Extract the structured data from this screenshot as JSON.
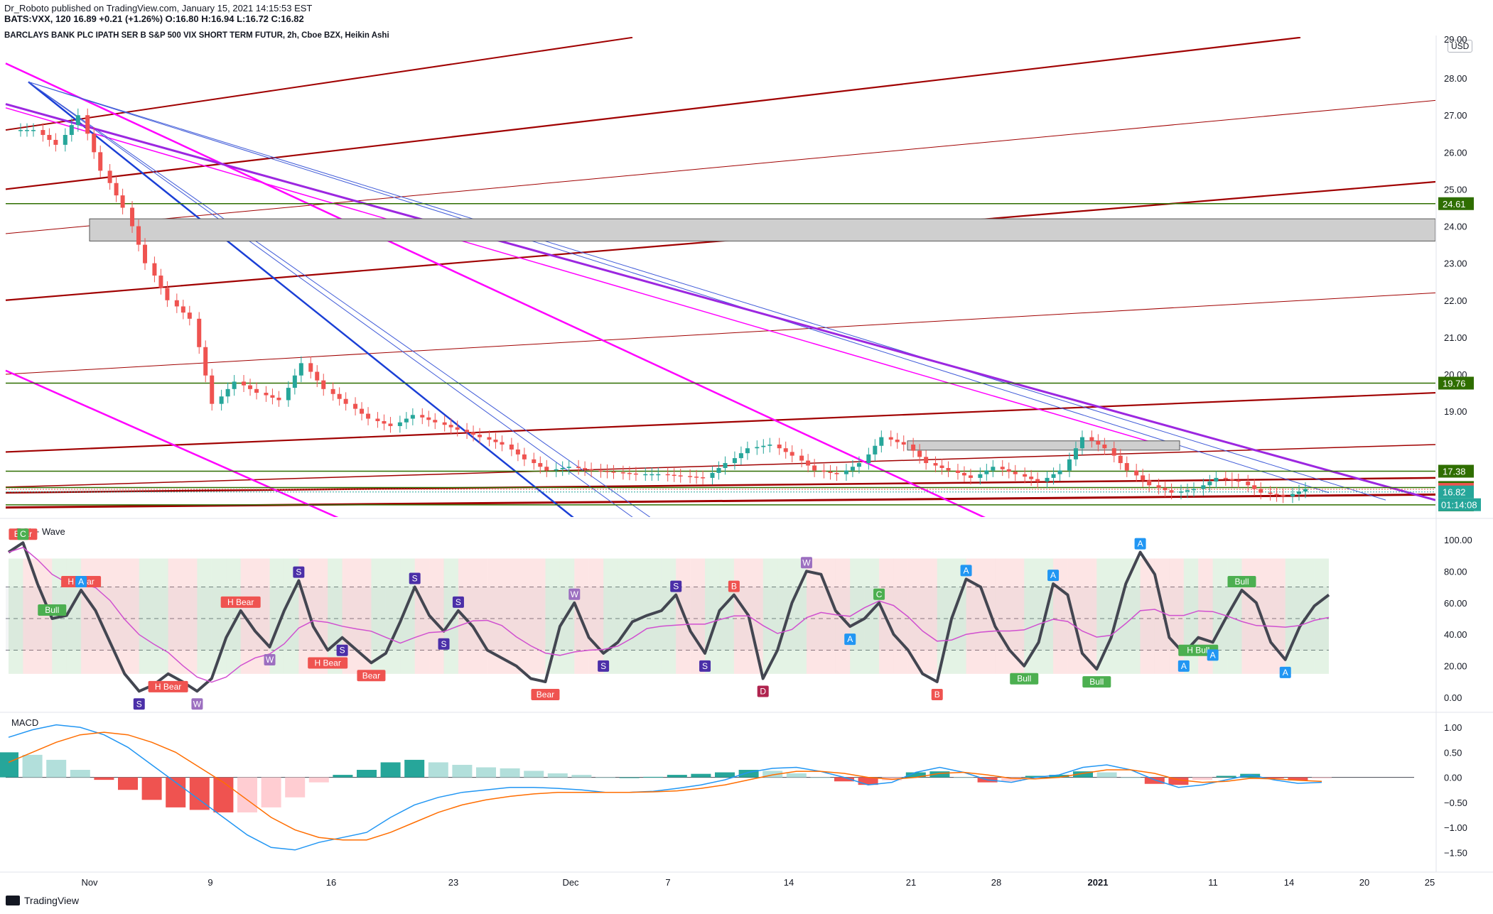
{
  "header": {
    "publisher_line": "Dr_Roboto published on TradingView.com, January 15, 2021 14:15:53 EST",
    "symbol_line": "BATS:VXX, 120  16.89  +0.21 (+1.26%)  O:16.80  H:16.94  L:16.72  C:16.82",
    "chart_title": "BARCLAYS BANK PLC IPATH SER B S&P 500 VIX SHORT TERM FUTUR, 2h, Cboe BZX, Heikin Ashi"
  },
  "currency_badge": "USD",
  "footer_logo": "TradingView",
  "colors": {
    "up": "#26a69a",
    "down": "#ef5350",
    "darkred_line": "#a00000",
    "blue_line": "#1a3fd6",
    "thin_blue": "#3f5ad8",
    "magenta": "#ff00ff",
    "purple": "#9c27e0",
    "green_level": "#2f6e00"
  },
  "chart_data": [
    {
      "type": "candlestick",
      "name": "price",
      "title": "BARCLAYS BANK PLC IPATH SER B S&P 500 VIX SHORT TERM FUTUR, 2h, Cboe BZX, Heikin Ashi",
      "x_tick_labels": [
        "Nov",
        "9",
        "16",
        "23",
        "Dec",
        "7",
        "14",
        "21",
        "28",
        "2021",
        "11",
        "14",
        "20",
        "25"
      ],
      "y_tick_labels": [
        "19.00",
        "20.00",
        "21.00",
        "22.00",
        "23.00",
        "24.00",
        "25.00",
        "26.00",
        "27.00",
        "28.00"
      ],
      "ylim": [
        16.2,
        29.0
      ],
      "closes_daily_approx": [
        26.6,
        26.2,
        27.0,
        25.5,
        24.5,
        23.0,
        22.0,
        21.5,
        19.2,
        19.8,
        19.5,
        19.3,
        20.3,
        19.6,
        19.2,
        18.8,
        18.6,
        18.9,
        18.7,
        18.5,
        18.3,
        18.1,
        17.7,
        17.4,
        17.5,
        17.4,
        17.35,
        17.3,
        17.3,
        17.25,
        17.2,
        17.6,
        18.0,
        18.1,
        17.8,
        17.4,
        17.3,
        17.6,
        18.3,
        18.1,
        17.6,
        17.4,
        17.2,
        17.5,
        17.3,
        17.1,
        17.4,
        18.3,
        18.0,
        17.4,
        17.0,
        16.8,
        16.9,
        17.2,
        17.1,
        16.8,
        16.7,
        16.9
      ],
      "levels": [
        {
          "label": "24.61",
          "value": 24.61
        },
        {
          "label": "19.76",
          "value": 19.76
        },
        {
          "label": "17.38",
          "value": 17.38
        },
        {
          "label": "16.94",
          "value": 16.94
        },
        {
          "label": "16.89",
          "value": 16.89
        },
        {
          "label": "16.82",
          "value": 16.82
        },
        {
          "label": "16.47",
          "value": 16.47
        }
      ],
      "countdown_label": "01:14:08",
      "zones": [
        {
          "from": 23.6,
          "to": 24.2
        },
        {
          "from": 17.95,
          "to": 18.2
        }
      ],
      "partially_visible_top_tick": "29.00"
    },
    {
      "type": "line",
      "name": "cRSI + Wave",
      "title": "cRSI + Wave",
      "y_tick_labels": [
        "0.00",
        "20.00",
        "40.00",
        "60.00",
        "80.00",
        "100.00"
      ],
      "ylim": [
        -8,
        108
      ],
      "guides": [
        30,
        50,
        70
      ],
      "wave": [
        92,
        98,
        72,
        50,
        52,
        68,
        55,
        35,
        15,
        4,
        8,
        15,
        10,
        4,
        12,
        38,
        55,
        42,
        32,
        55,
        74,
        45,
        30,
        38,
        30,
        22,
        28,
        48,
        70,
        52,
        42,
        55,
        45,
        30,
        25,
        20,
        12,
        10,
        45,
        60,
        38,
        28,
        35,
        48,
        52,
        55,
        65,
        42,
        28,
        55,
        65,
        52,
        12,
        30,
        60,
        80,
        78,
        55,
        45,
        50,
        60,
        40,
        30,
        15,
        10,
        50,
        75,
        70,
        45,
        30,
        20,
        35,
        72,
        65,
        28,
        18,
        38,
        72,
        92,
        78,
        38,
        28,
        38,
        35,
        52,
        68,
        60,
        35,
        24,
        45,
        58,
        65
      ],
      "signal_labels": [
        "Bear",
        "S",
        "H Bear",
        "S",
        "H Bear",
        "W",
        "H Bear",
        "W",
        "S",
        "H Bear",
        "S",
        "Bear",
        "S",
        "S",
        "S",
        "Bear",
        "W",
        "S",
        "S",
        "S",
        "B",
        "D",
        "W",
        "A",
        "C",
        "B",
        "A",
        "Bull",
        "A",
        "Bull",
        "A",
        "A",
        "H Bull",
        "A",
        "Bull",
        "A",
        "C",
        "Bull",
        "A"
      ]
    },
    {
      "type": "bar",
      "name": "MACD",
      "title": "MACD",
      "y_tick_labels": [
        "1.00",
        "0.50",
        "0.00",
        "−0.50",
        "−1.00",
        "−1.50"
      ],
      "ylim": [
        -1.85,
        1.2
      ],
      "macd": [
        0.8,
        0.95,
        1.05,
        1.0,
        0.85,
        0.6,
        0.25,
        -0.1,
        -0.45,
        -0.8,
        -1.15,
        -1.4,
        -1.45,
        -1.3,
        -1.2,
        -1.1,
        -0.8,
        -0.55,
        -0.4,
        -0.3,
        -0.25,
        -0.2,
        -0.2,
        -0.22,
        -0.25,
        -0.3,
        -0.3,
        -0.28,
        -0.22,
        -0.15,
        -0.05,
        0.1,
        0.18,
        0.2,
        0.12,
        0.0,
        -0.15,
        -0.1,
        0.1,
        0.2,
        0.1,
        -0.05,
        -0.1,
        0.0,
        0.05,
        0.2,
        0.25,
        0.15,
        -0.05,
        -0.2,
        -0.15,
        -0.05,
        0.05,
        -0.05,
        -0.12,
        -0.1
      ],
      "signal": [
        0.3,
        0.5,
        0.7,
        0.85,
        0.9,
        0.85,
        0.7,
        0.5,
        0.2,
        -0.1,
        -0.45,
        -0.8,
        -1.05,
        -1.2,
        -1.25,
        -1.25,
        -1.1,
        -0.9,
        -0.7,
        -0.55,
        -0.45,
        -0.38,
        -0.33,
        -0.3,
        -0.3,
        -0.3,
        -0.3,
        -0.29,
        -0.27,
        -0.22,
        -0.15,
        -0.05,
        0.05,
        0.12,
        0.12,
        0.08,
        0.0,
        -0.04,
        0.0,
        0.08,
        0.1,
        0.05,
        -0.02,
        -0.03,
        0.0,
        0.08,
        0.15,
        0.15,
        0.08,
        -0.05,
        -0.1,
        -0.08,
        -0.02,
        -0.03,
        -0.06,
        -0.08
      ]
    }
  ]
}
